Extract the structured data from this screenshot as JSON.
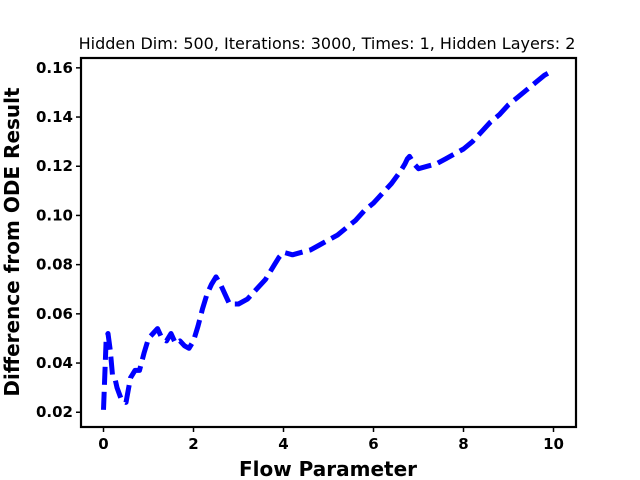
{
  "chart_data": {
    "type": "line",
    "title": "Hidden Dim: 500, Iterations: 3000, Times: 1, Hidden Layers: 2",
    "xlabel": "Flow Parameter",
    "ylabel": "Difference from ODE Result",
    "xlim": [
      -0.5,
      10.5
    ],
    "ylim": [
      0.014,
      0.164
    ],
    "xticks": [
      0,
      2,
      4,
      6,
      8,
      10
    ],
    "yticks": [
      0.02,
      0.04,
      0.06,
      0.08,
      0.1,
      0.12,
      0.14,
      0.16
    ],
    "ytick_labels": [
      "0.02",
      "0.04",
      "0.06",
      "0.08",
      "0.10",
      "0.12",
      "0.14",
      "0.16"
    ],
    "xtick_labels": [
      "0",
      "2",
      "4",
      "6",
      "8",
      "10"
    ],
    "grid": false,
    "series": [
      {
        "color": "#0000ff",
        "style": "dashed",
        "x": [
          0.0,
          0.03,
          0.06,
          0.1,
          0.15,
          0.2,
          0.25,
          0.3,
          0.4,
          0.5,
          0.6,
          0.7,
          0.8,
          0.9,
          1.0,
          1.1,
          1.2,
          1.3,
          1.4,
          1.5,
          1.6,
          1.7,
          1.8,
          1.9,
          2.0,
          2.1,
          2.2,
          2.3,
          2.4,
          2.5,
          2.6,
          2.7,
          2.8,
          2.9,
          3.0,
          3.2,
          3.4,
          3.6,
          3.8,
          3.9,
          4.0,
          4.2,
          4.4,
          4.6,
          4.8,
          5.0,
          5.2,
          5.4,
          5.6,
          5.8,
          6.0,
          6.2,
          6.4,
          6.6,
          6.7,
          6.75,
          6.8,
          6.9,
          7.0,
          7.2,
          7.4,
          7.6,
          7.8,
          8.0,
          8.2,
          8.4,
          8.6,
          8.8,
          9.0,
          9.2,
          9.4,
          9.6,
          9.8,
          10.0
        ],
        "y": [
          0.021,
          0.035,
          0.05,
          0.052,
          0.045,
          0.035,
          0.034,
          0.03,
          0.025,
          0.024,
          0.034,
          0.037,
          0.037,
          0.044,
          0.05,
          0.052,
          0.054,
          0.05,
          0.049,
          0.052,
          0.048,
          0.049,
          0.047,
          0.046,
          0.049,
          0.055,
          0.062,
          0.068,
          0.072,
          0.075,
          0.072,
          0.068,
          0.064,
          0.064,
          0.064,
          0.066,
          0.07,
          0.074,
          0.08,
          0.083,
          0.085,
          0.084,
          0.085,
          0.086,
          0.088,
          0.09,
          0.092,
          0.095,
          0.098,
          0.102,
          0.105,
          0.109,
          0.113,
          0.118,
          0.121,
          0.123,
          0.124,
          0.121,
          0.119,
          0.12,
          0.121,
          0.123,
          0.125,
          0.127,
          0.13,
          0.134,
          0.138,
          0.141,
          0.145,
          0.148,
          0.151,
          0.154,
          0.157,
          0.159
        ]
      }
    ]
  }
}
